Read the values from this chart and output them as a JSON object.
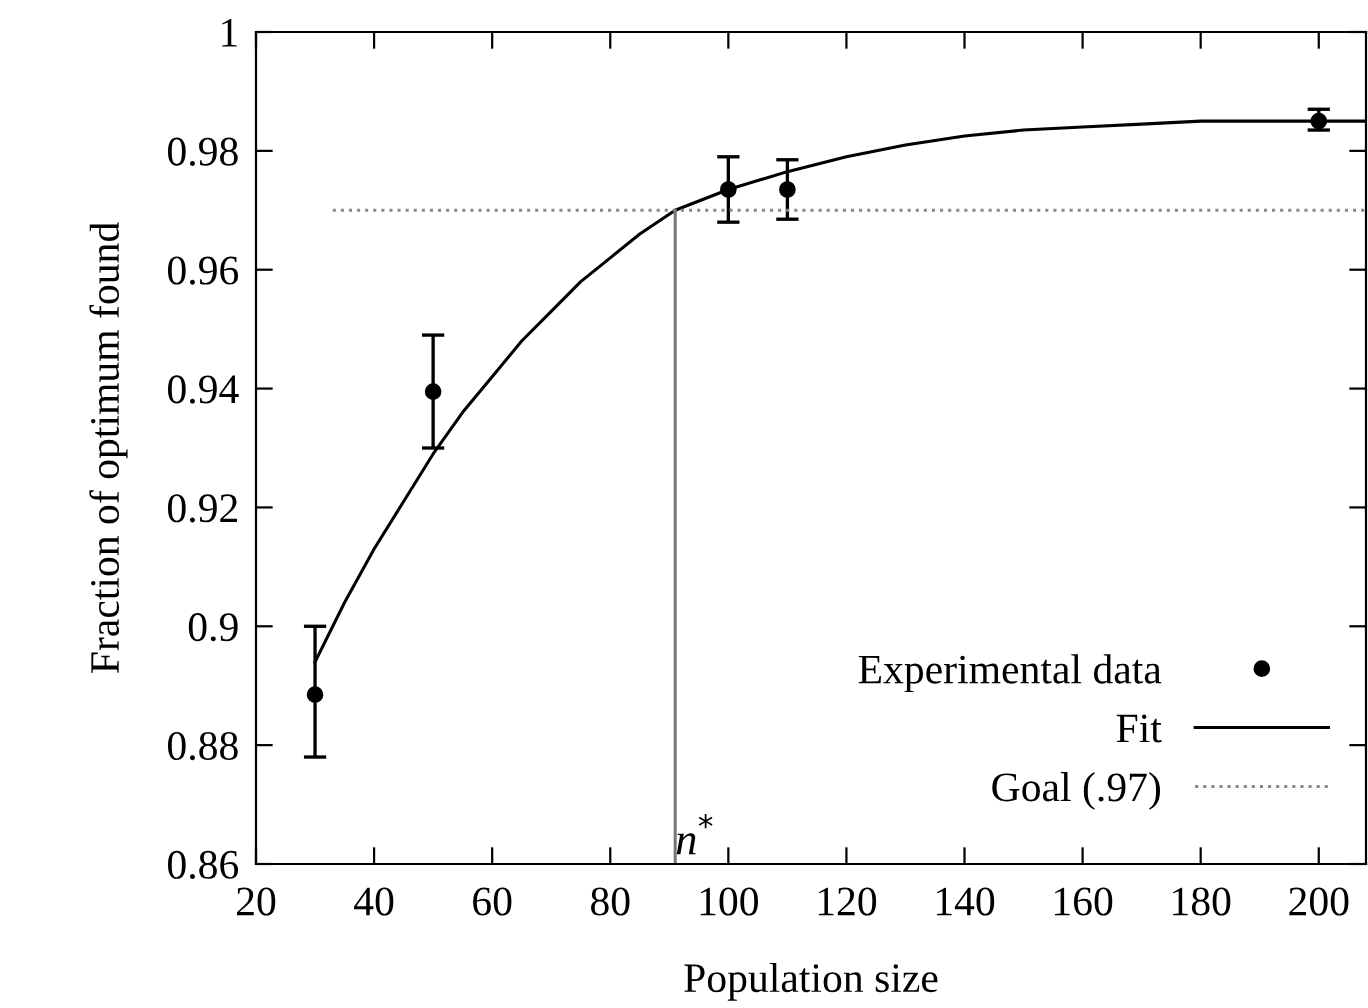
{
  "chart_data": {
    "type": "scatter",
    "xlabel": "Population size",
    "ylabel": "Fraction of optimum found",
    "xlim": [
      20,
      208
    ],
    "xticks": [
      20,
      40,
      60,
      80,
      100,
      120,
      140,
      160,
      180,
      200
    ],
    "ylim": [
      0.86,
      1
    ],
    "yticks": [
      0.86,
      0.88,
      0.9,
      0.92,
      0.94,
      0.96,
      0.98,
      1
    ],
    "legend": "bottom right",
    "grid": false,
    "series": [
      {
        "name": "Experimental data",
        "marker": "circle",
        "color": "#000000",
        "x": [
          30,
          50,
          100,
          110,
          200
        ],
        "values": [
          0.8885,
          0.9395,
          0.9735,
          0.9735,
          0.985
        ],
        "errors": [
          [
            0.878,
            0.9
          ],
          [
            0.93,
            0.949
          ],
          [
            0.968,
            0.979
          ],
          [
            0.9685,
            0.9785
          ],
          [
            0.9835,
            0.987
          ]
        ]
      },
      {
        "name": "Fit",
        "type": "line",
        "line_style": "solid",
        "color": "#000000",
        "x": [
          30,
          35,
          40,
          45,
          50,
          55,
          60,
          65,
          70,
          75,
          80,
          85,
          91,
          100,
          110,
          120,
          130,
          140,
          150,
          160,
          170,
          180,
          190,
          208
        ],
        "values": [
          0.894,
          0.904,
          0.913,
          0.921,
          0.929,
          0.936,
          0.942,
          0.948,
          0.953,
          0.958,
          0.962,
          0.966,
          0.97,
          0.9735,
          0.9765,
          0.979,
          0.981,
          0.9825,
          0.9835,
          0.984,
          0.9845,
          0.985,
          0.985,
          0.985
        ]
      },
      {
        "name": "Goal (.97)",
        "type": "line",
        "line_style": "dotted",
        "color": "#888888",
        "x": [
          33,
          208
        ],
        "values": [
          0.97,
          0.97
        ]
      },
      {
        "type": "line",
        "line_style": "solid",
        "color": "#777777",
        "x": [
          91,
          91
        ],
        "values": [
          0.86,
          0.97
        ]
      }
    ],
    "annotations": [
      {
        "text": "n$^{*}$",
        "x": 91,
        "y": 0.86
      }
    ]
  }
}
